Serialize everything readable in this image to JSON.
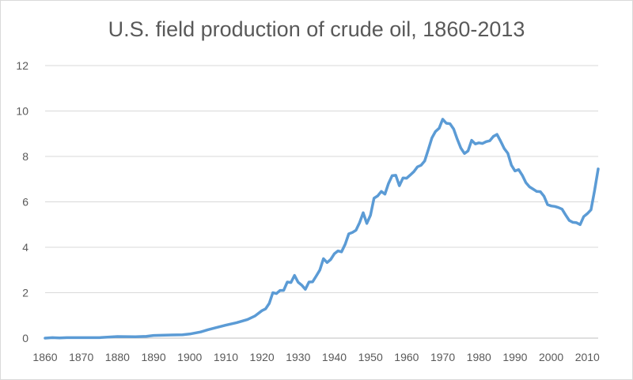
{
  "chart_data": {
    "type": "line",
    "title": "U.S. field production of crude oil, 1860-2013",
    "xlabel": "",
    "ylabel": "",
    "xlim": [
      1860,
      2013
    ],
    "ylim": [
      0,
      12
    ],
    "grid": true,
    "legend": "none",
    "line_color": "#5b9bd5",
    "x_ticks": [
      "1860",
      "1870",
      "1880",
      "1890",
      "1900",
      "1910",
      "1920",
      "1930",
      "1940",
      "1950",
      "1960",
      "1970",
      "1980",
      "1990",
      "2000",
      "2010"
    ],
    "y_ticks": [
      "0",
      "2",
      "4",
      "6",
      "8",
      "10",
      "12"
    ],
    "series": [
      {
        "x": [
          1860,
          1862,
          1864,
          1866,
          1870,
          1875,
          1880,
          1885,
          1888,
          1890,
          1895,
          1898,
          1900,
          1903,
          1905,
          1907,
          1910,
          1913,
          1916,
          1918,
          1920,
          1921,
          1922,
          1923,
          1924,
          1925,
          1926,
          1927,
          1928,
          1929,
          1930,
          1931,
          1932,
          1933,
          1934,
          1935,
          1936,
          1937,
          1938,
          1939,
          1940,
          1941,
          1942,
          1943,
          1944,
          1945,
          1946,
          1947,
          1948,
          1949,
          1950,
          1951,
          1952,
          1953,
          1954,
          1955,
          1956,
          1957,
          1958,
          1959,
          1960,
          1961,
          1962,
          1963,
          1964,
          1965,
          1966,
          1967,
          1968,
          1969,
          1970,
          1971,
          1972,
          1973,
          1974,
          1975,
          1976,
          1977,
          1978,
          1979,
          1980,
          1981,
          1982,
          1983,
          1984,
          1985,
          1986,
          1987,
          1988,
          1989,
          1990,
          1991,
          1992,
          1993,
          1994,
          1995,
          1996,
          1997,
          1998,
          1999,
          2000,
          2001,
          2002,
          2003,
          2004,
          2005,
          2006,
          2007,
          2008,
          2009,
          2010,
          2011,
          2012,
          2013
        ],
        "y": [
          0.0,
          0.02,
          0.01,
          0.02,
          0.02,
          0.02,
          0.07,
          0.06,
          0.08,
          0.12,
          0.14,
          0.15,
          0.18,
          0.27,
          0.37,
          0.45,
          0.57,
          0.68,
          0.82,
          0.97,
          1.21,
          1.29,
          1.53,
          2.0,
          1.96,
          2.1,
          2.1,
          2.47,
          2.45,
          2.76,
          2.46,
          2.33,
          2.15,
          2.47,
          2.48,
          2.73,
          3.0,
          3.5,
          3.33,
          3.46,
          3.71,
          3.84,
          3.8,
          4.13,
          4.59,
          4.65,
          4.75,
          5.09,
          5.52,
          5.05,
          5.41,
          6.16,
          6.26,
          6.46,
          6.34,
          6.81,
          7.15,
          7.17,
          6.71,
          7.05,
          7.04,
          7.18,
          7.33,
          7.54,
          7.61,
          7.8,
          8.3,
          8.81,
          9.1,
          9.24,
          9.64,
          9.46,
          9.44,
          9.21,
          8.77,
          8.37,
          8.13,
          8.24,
          8.71,
          8.55,
          8.6,
          8.57,
          8.65,
          8.69,
          8.88,
          8.97,
          8.68,
          8.35,
          8.14,
          7.61,
          7.36,
          7.42,
          7.17,
          6.85,
          6.66,
          6.56,
          6.46,
          6.45,
          6.25,
          5.88,
          5.82,
          5.8,
          5.75,
          5.68,
          5.42,
          5.18,
          5.1,
          5.08,
          5.0,
          5.35,
          5.48,
          5.65,
          6.49,
          7.45
        ]
      }
    ]
  }
}
